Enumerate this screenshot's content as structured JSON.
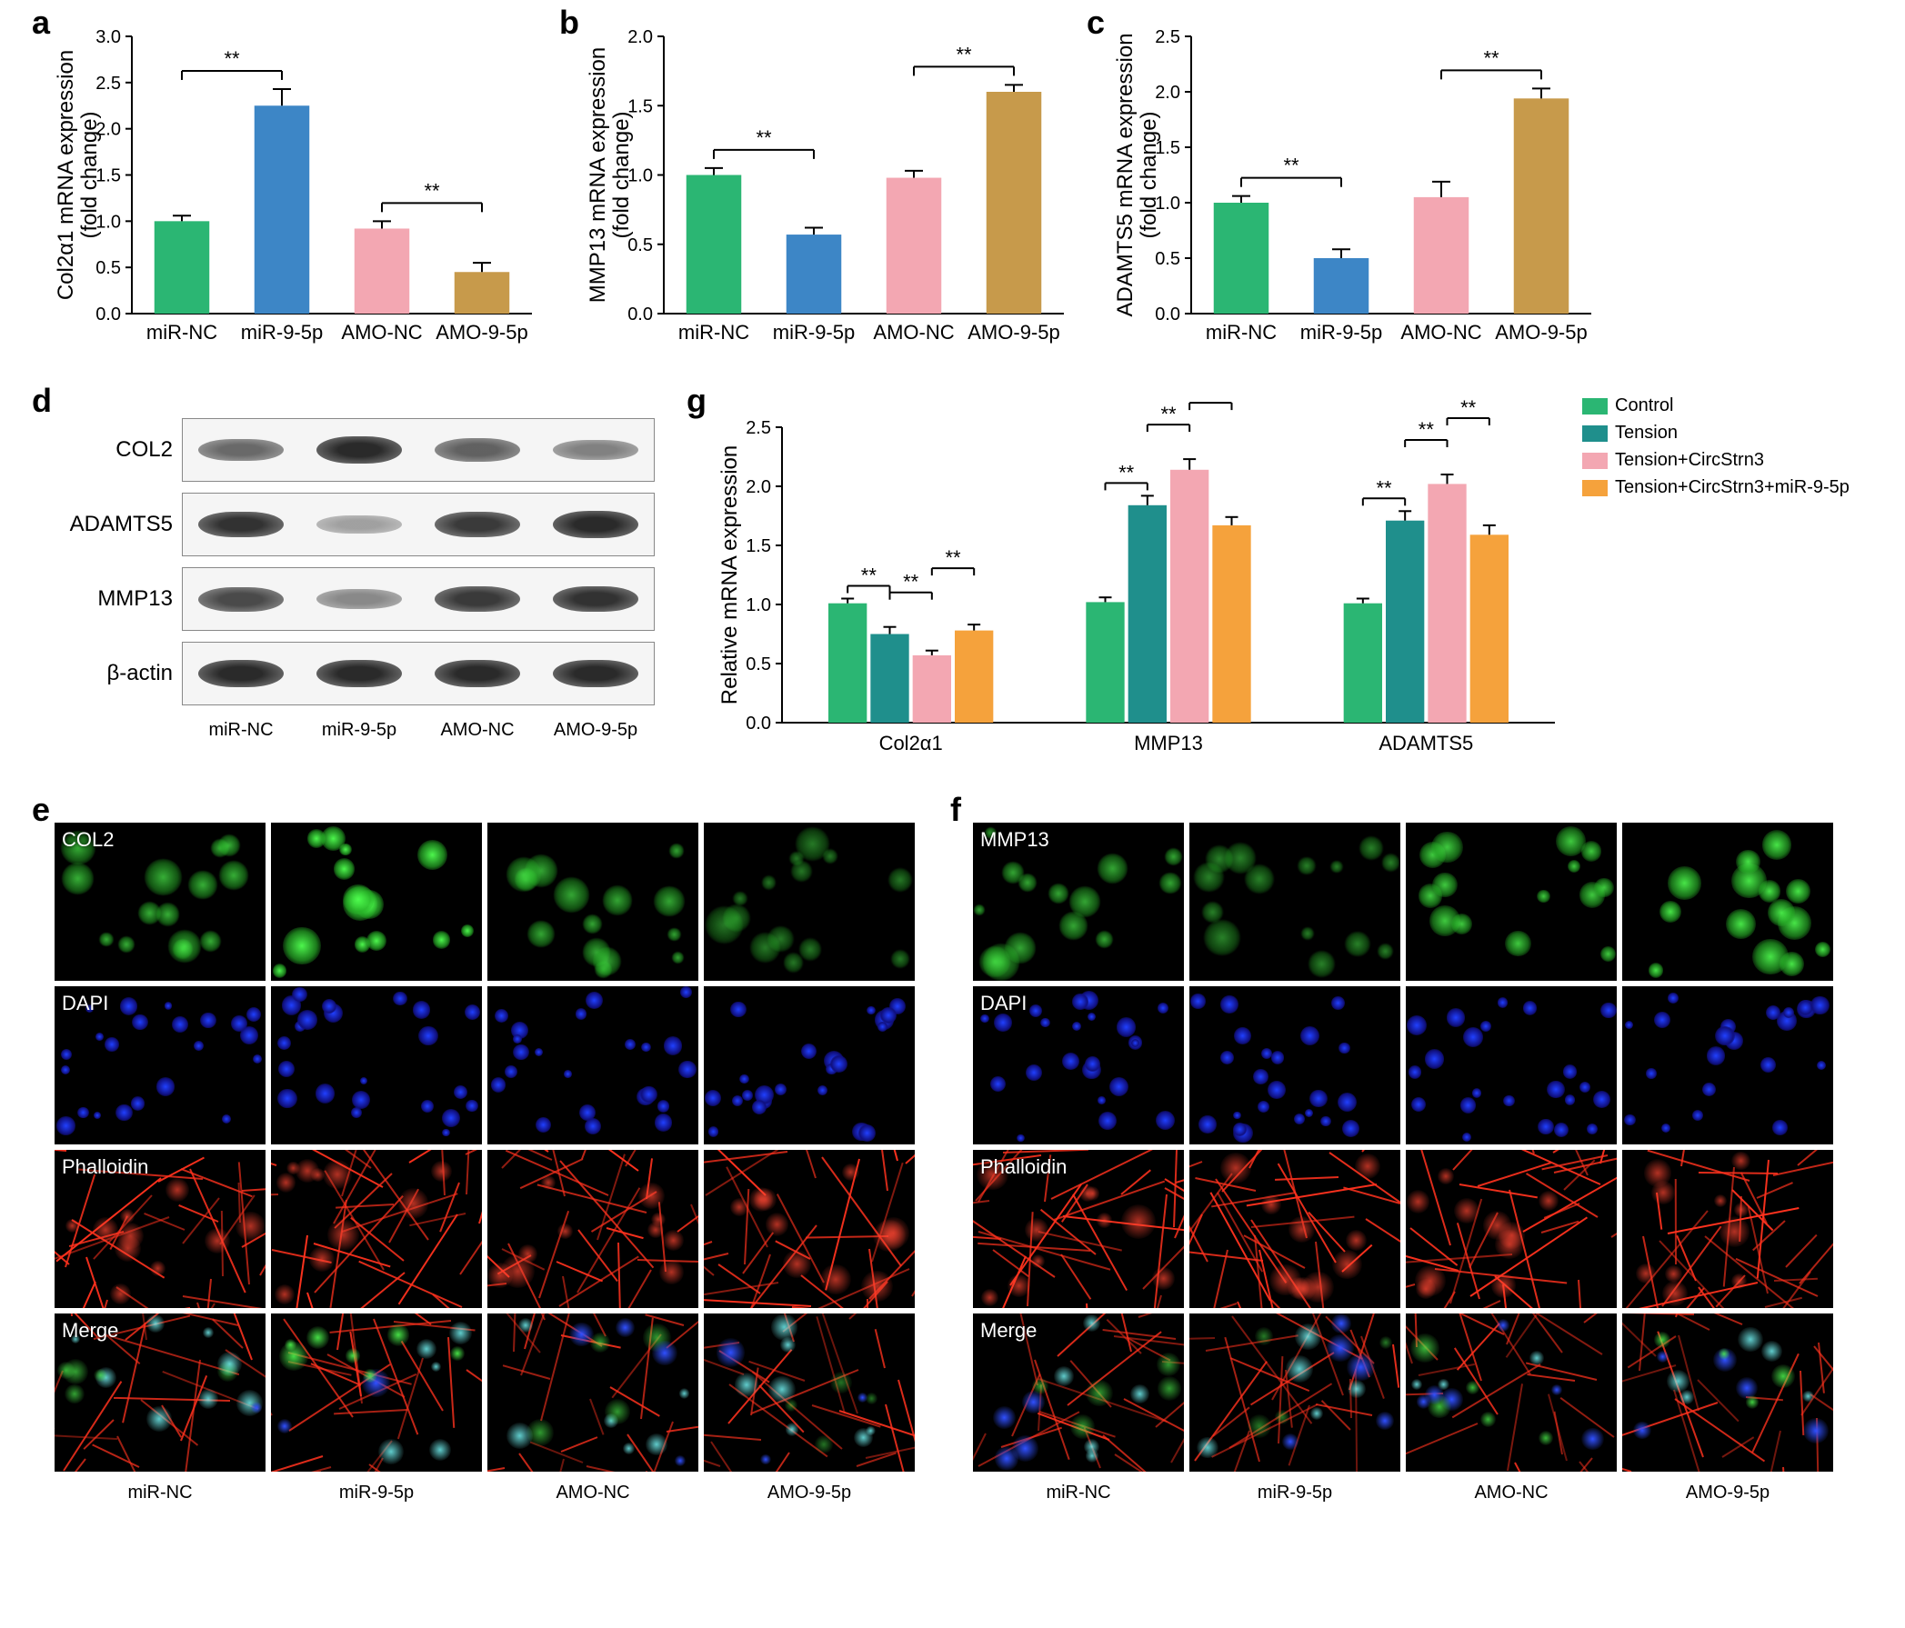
{
  "colors": {
    "green": "#2bb673",
    "blue": "#3d86c6",
    "pink": "#f3a7b2",
    "tan": "#c79a4b",
    "teal": "#1f8f8c",
    "orange": "#f5a23c",
    "axis": "#000000",
    "bg": "#ffffff",
    "if_green": "#3dff3d",
    "if_blue": "#2040ff",
    "if_red": "#ff2a1a"
  },
  "panel_labels": {
    "a": "a",
    "b": "b",
    "c": "c",
    "d": "d",
    "e": "e",
    "f": "f",
    "g": "g"
  },
  "chart_a": {
    "type": "bar",
    "title": "Col2α1 mRNA expression\n(fold change)",
    "ylim": [
      0,
      3.0
    ],
    "ytick_step": 0.5,
    "categories": [
      "miR-NC",
      "miR-9-5p",
      "AMO-NC",
      "AMO-9-5p"
    ],
    "values": [
      1.0,
      2.25,
      0.92,
      0.45
    ],
    "errors": [
      0.06,
      0.18,
      0.08,
      0.1
    ],
    "bar_colors": [
      "green",
      "blue",
      "pink",
      "tan"
    ],
    "sig": [
      {
        "from": 0,
        "to": 1,
        "label": "**"
      },
      {
        "from": 2,
        "to": 3,
        "label": "**"
      }
    ]
  },
  "chart_b": {
    "type": "bar",
    "title": "MMP13 mRNA expression\n(fold change)",
    "ylim": [
      0,
      2.0
    ],
    "ytick_step": 0.5,
    "categories": [
      "miR-NC",
      "miR-9-5p",
      "AMO-NC",
      "AMO-9-5p"
    ],
    "values": [
      1.0,
      0.57,
      0.98,
      1.6
    ],
    "errors": [
      0.05,
      0.05,
      0.05,
      0.05
    ],
    "bar_colors": [
      "green",
      "blue",
      "pink",
      "tan"
    ],
    "sig": [
      {
        "from": 0,
        "to": 1,
        "label": "**"
      },
      {
        "from": 2,
        "to": 3,
        "label": "**"
      }
    ]
  },
  "chart_c": {
    "type": "bar",
    "title": "ADAMTS5 mRNA expression\n(fold change)",
    "ylim": [
      0,
      2.5
    ],
    "ytick_step": 0.5,
    "categories": [
      "miR-NC",
      "miR-9-5p",
      "AMO-NC",
      "AMO-9-5p"
    ],
    "values": [
      1.0,
      0.5,
      1.05,
      1.94
    ],
    "errors": [
      0.06,
      0.08,
      0.14,
      0.09
    ],
    "bar_colors": [
      "green",
      "blue",
      "pink",
      "tan"
    ],
    "sig": [
      {
        "from": 0,
        "to": 1,
        "label": "**"
      },
      {
        "from": 2,
        "to": 3,
        "label": "**"
      }
    ]
  },
  "chart_g": {
    "type": "grouped_bar",
    "title": "Relative mRNA expression",
    "ylim": [
      0,
      2.5
    ],
    "ytick_step": 0.5,
    "groups": [
      "Col2α1",
      "MMP13",
      "ADAMTS5"
    ],
    "series": [
      {
        "name": "Control",
        "color": "green",
        "values": [
          1.01,
          1.02,
          1.01
        ],
        "errors": [
          0.04,
          0.04,
          0.04
        ]
      },
      {
        "name": "Tension",
        "color": "teal",
        "values": [
          0.75,
          1.84,
          1.71
        ],
        "errors": [
          0.06,
          0.08,
          0.08
        ]
      },
      {
        "name": "Tension+CircStrn3",
        "color": "pink",
        "values": [
          0.57,
          2.14,
          2.02
        ],
        "errors": [
          0.04,
          0.09,
          0.08
        ]
      },
      {
        "name": "Tension+CircStrn3+miR-9-5p",
        "color": "orange",
        "values": [
          0.78,
          1.67,
          1.59
        ],
        "errors": [
          0.05,
          0.07,
          0.08
        ]
      }
    ],
    "sig_per_group": [
      [
        {
          "from": 0,
          "to": 1,
          "label": "**"
        },
        {
          "from": 1,
          "to": 2,
          "label": "**"
        },
        {
          "from": 2,
          "to": 3,
          "label": "**"
        }
      ],
      [
        {
          "from": 0,
          "to": 1,
          "label": "**"
        },
        {
          "from": 1,
          "to": 2,
          "label": "**"
        },
        {
          "from": 2,
          "to": 3,
          "label": "**"
        }
      ],
      [
        {
          "from": 0,
          "to": 1,
          "label": "**"
        },
        {
          "from": 1,
          "to": 2,
          "label": "**"
        },
        {
          "from": 2,
          "to": 3,
          "label": "**"
        }
      ]
    ]
  },
  "blot_d": {
    "rows": [
      "COL2",
      "ADAMTS5",
      "MMP13",
      "β-actin"
    ],
    "columns": [
      "miR-NC",
      "miR-9-5p",
      "AMO-NC",
      "AMO-9-5p"
    ],
    "intensity": [
      [
        0.55,
        0.95,
        0.6,
        0.4
      ],
      [
        0.9,
        0.2,
        0.85,
        0.95
      ],
      [
        0.75,
        0.35,
        0.85,
        0.9
      ],
      [
        0.95,
        0.95,
        0.95,
        0.95
      ]
    ]
  },
  "if_e": {
    "row_labels": [
      "COL2",
      "DAPI",
      "Phalloidin",
      "Merge"
    ],
    "columns": [
      "miR-NC",
      "miR-9-5p",
      "AMO-NC",
      "AMO-9-5p"
    ],
    "row_colors": [
      "if_green",
      "if_blue",
      "if_red",
      "merge"
    ],
    "intensity_by_col": [
      0.55,
      0.95,
      0.5,
      0.25
    ]
  },
  "if_f": {
    "row_labels": [
      "MMP13",
      "DAPI",
      "Phalloidin",
      "Merge"
    ],
    "columns": [
      "miR-NC",
      "miR-9-5p",
      "AMO-NC",
      "AMO-9-5p"
    ],
    "row_colors": [
      "if_green",
      "if_blue",
      "if_red",
      "merge"
    ],
    "intensity_by_col": [
      0.5,
      0.3,
      0.7,
      0.85
    ]
  }
}
